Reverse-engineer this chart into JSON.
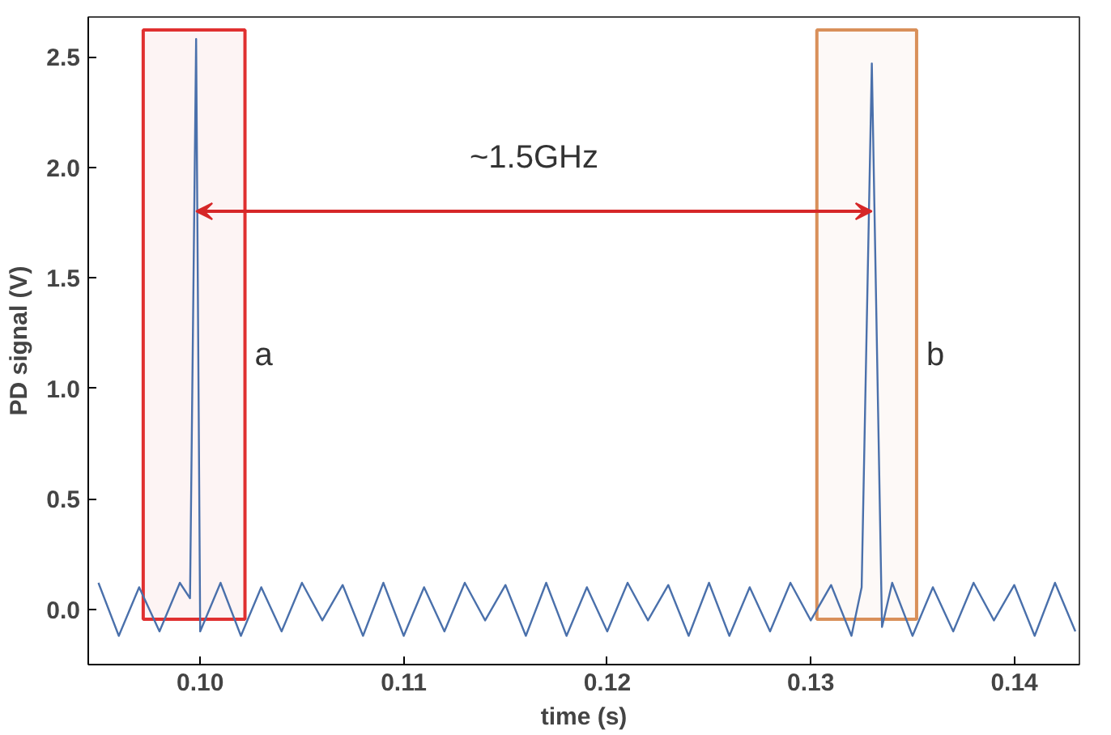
{
  "chart_data": {
    "type": "line",
    "xlabel": "time (s)",
    "ylabel": "PD signal (V)",
    "xlim": [
      0.0945,
      0.1432
    ],
    "ylim": [
      -0.25,
      2.68
    ],
    "xticks": [
      {
        "value": 0.1,
        "label": "0.10"
      },
      {
        "value": 0.11,
        "label": "0.11"
      },
      {
        "value": 0.12,
        "label": "0.12"
      },
      {
        "value": 0.13,
        "label": "0.13"
      },
      {
        "value": 0.14,
        "label": "0.14"
      }
    ],
    "yticks": [
      {
        "value": 0,
        "label": "0.0"
      },
      {
        "value": 0.5,
        "label": "0.5"
      },
      {
        "value": 1,
        "label": "1.0"
      },
      {
        "value": 1.5,
        "label": "1.5"
      },
      {
        "value": 2,
        "label": "2.0"
      },
      {
        "value": 2.5,
        "label": "2.5"
      }
    ],
    "grid": false,
    "series": [
      {
        "color": "#4a70ab",
        "x": [
          0.095,
          0.096,
          0.097,
          0.098,
          0.099,
          0.0995,
          0.0998,
          0.1,
          0.101,
          0.102,
          0.103,
          0.104,
          0.105,
          0.106,
          0.107,
          0.108,
          0.109,
          0.11,
          0.111,
          0.112,
          0.113,
          0.114,
          0.115,
          0.116,
          0.117,
          0.118,
          0.119,
          0.12,
          0.121,
          0.122,
          0.123,
          0.124,
          0.125,
          0.126,
          0.127,
          0.128,
          0.129,
          0.13,
          0.131,
          0.132,
          0.1325,
          0.133,
          0.1335,
          0.134,
          0.135,
          0.136,
          0.137,
          0.138,
          0.139,
          0.14,
          0.141,
          0.142,
          0.143
        ],
        "values": [
          0.12,
          -0.12,
          0.1,
          -0.1,
          0.12,
          0.05,
          2.58,
          -0.1,
          0.12,
          -0.12,
          0.1,
          -0.1,
          0.12,
          -0.05,
          0.11,
          -0.12,
          0.12,
          -0.12,
          0.1,
          -0.1,
          0.12,
          -0.05,
          0.11,
          -0.12,
          0.12,
          -0.12,
          0.1,
          -0.1,
          0.12,
          -0.05,
          0.11,
          -0.12,
          0.12,
          -0.12,
          0.1,
          -0.1,
          0.12,
          -0.05,
          0.11,
          -0.12,
          0.1,
          2.47,
          -0.08,
          0.12,
          -0.12,
          0.1,
          -0.1,
          0.12,
          -0.05,
          0.11,
          -0.12,
          0.12,
          -0.1
        ]
      }
    ],
    "bands": [
      {
        "axis": "x",
        "from": 0.0972,
        "to": 0.1022,
        "label": "a",
        "color": "#e03030"
      },
      {
        "axis": "x",
        "from": 0.1303,
        "to": 0.1352,
        "label": "b",
        "color": "#d9905a"
      }
    ],
    "annotations": [
      "~1.5GHz"
    ]
  }
}
